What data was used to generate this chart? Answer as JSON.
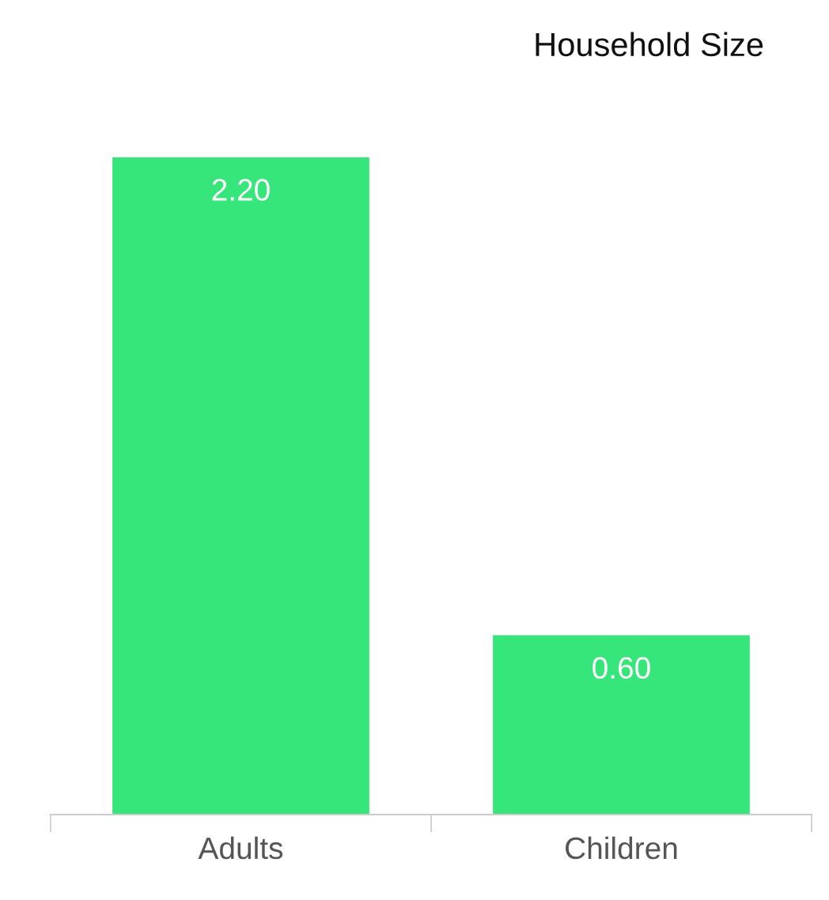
{
  "chart_data": {
    "type": "bar",
    "title": "Household Size",
    "categories": [
      "Adults",
      "Children"
    ],
    "values": [
      2.2,
      0.6
    ],
    "value_labels": [
      "2.20",
      "0.60"
    ],
    "color": "#36e67a",
    "grid": false,
    "legend": false
  }
}
